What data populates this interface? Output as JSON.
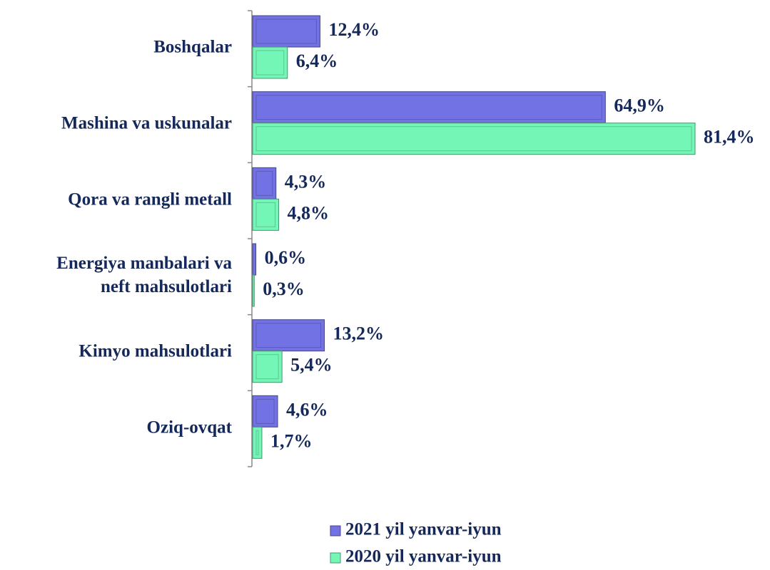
{
  "chart_data": {
    "type": "bar",
    "orientation": "horizontal",
    "categories": [
      "Boshqalar",
      "Mashina va uskunalar",
      "Qora va rangli metall",
      "Energiya manbalari va\nneft mahsulotlari",
      "Kimyo mahsulotlari",
      "Oziq-ovqat"
    ],
    "series": [
      {
        "name": "2021 yil yanvar-iyun",
        "color": "#7272e4",
        "values": [
          12.4,
          64.9,
          4.3,
          0.6,
          13.2,
          4.6
        ],
        "value_labels": [
          "12,4%",
          "64,9%",
          "4,3%",
          "0,6%",
          "13,2%",
          "4,6%"
        ]
      },
      {
        "name": "2020 yil yanvar-iyun",
        "color": "#74f7b6",
        "values": [
          6.4,
          81.4,
          4.8,
          0.3,
          5.4,
          1.7
        ],
        "value_labels": [
          "6,4%",
          "81,4%",
          "4,8%",
          "0,3%",
          "5,4%",
          "1,7%"
        ]
      }
    ],
    "legend": "bottom"
  }
}
